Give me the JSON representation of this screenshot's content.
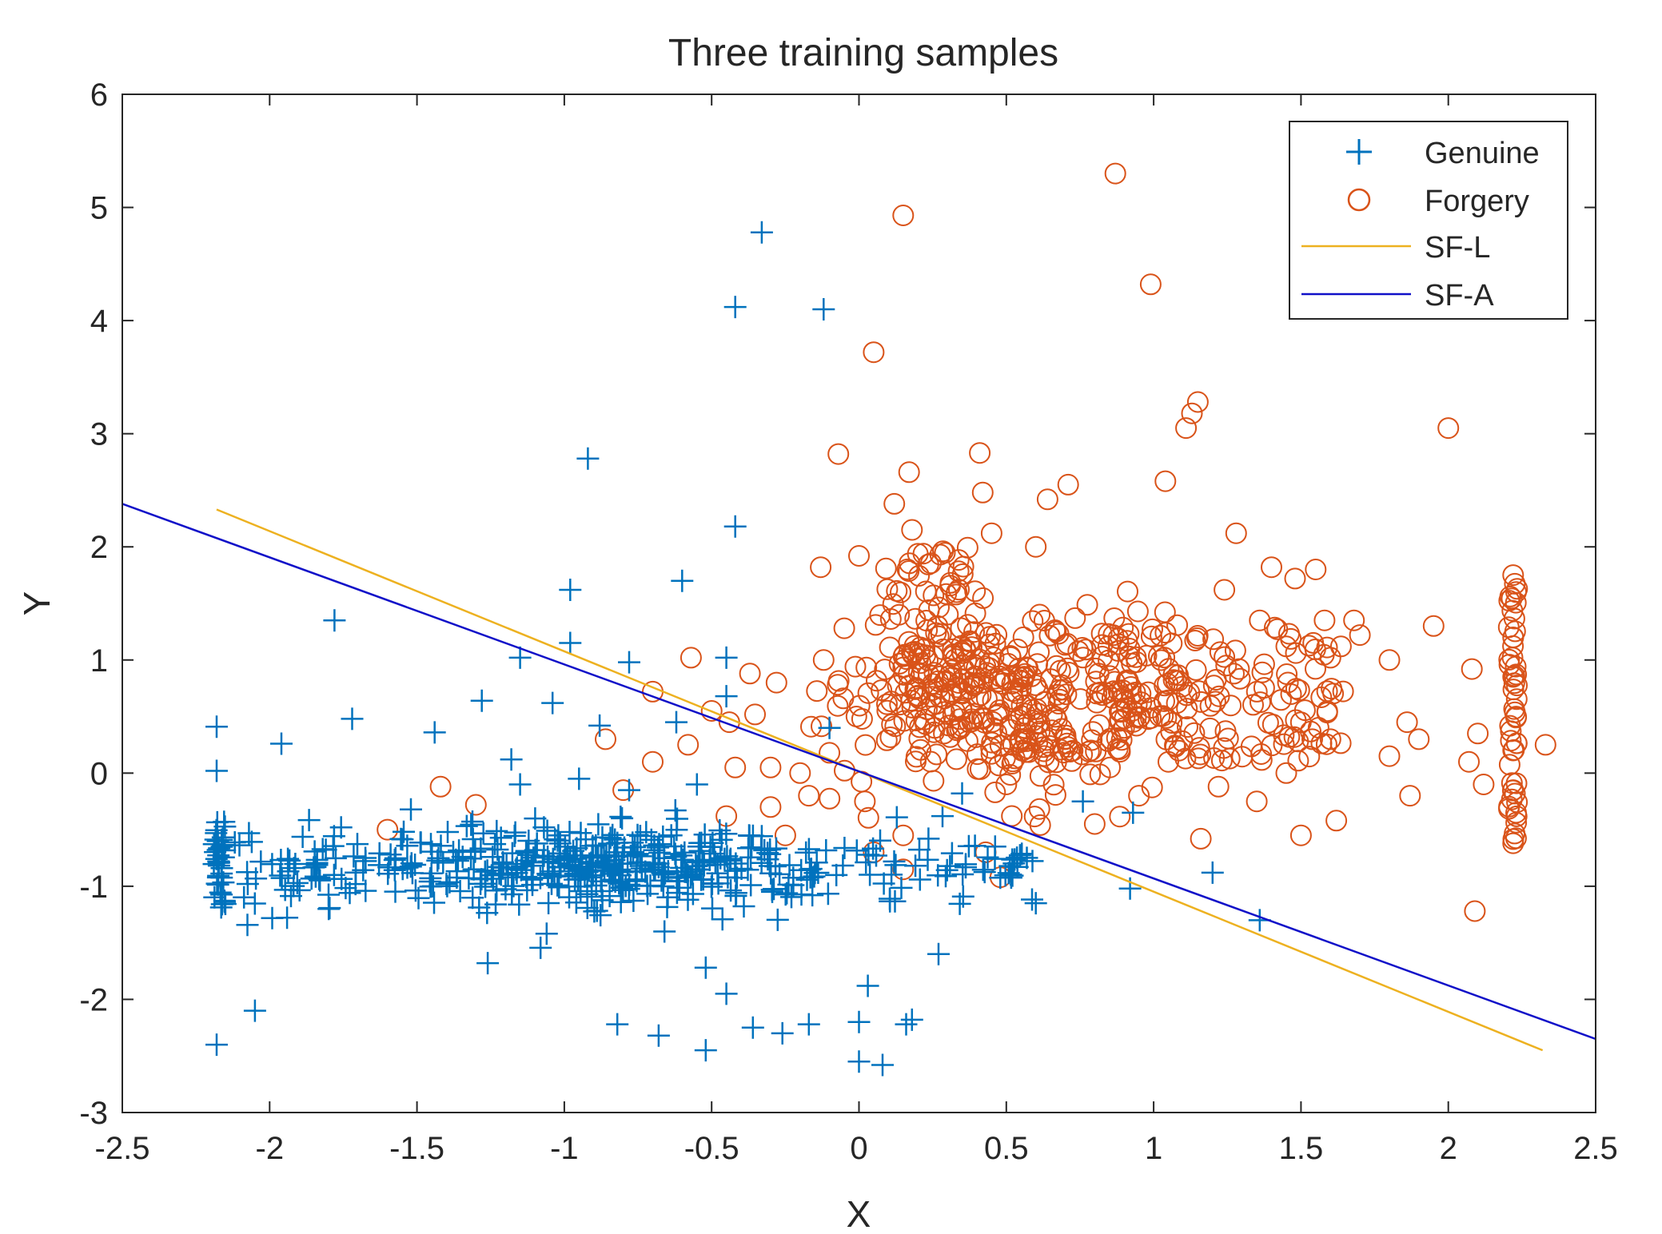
{
  "chart_data": {
    "type": "scatter",
    "title": "Three training samples",
    "xlabel": "X",
    "ylabel": "Y",
    "xlim": [
      -2.5,
      2.5
    ],
    "ylim": [
      -3,
      6
    ],
    "xticks": [
      -2.5,
      -2,
      -1.5,
      -1,
      -0.5,
      0,
      0.5,
      1,
      1.5,
      2,
      2.5
    ],
    "yticks": [
      -3,
      -2,
      -1,
      0,
      1,
      2,
      3,
      4,
      5,
      6
    ],
    "xtick_labels": [
      "-2.5",
      "-2",
      "-1.5",
      "-1",
      "-0.5",
      "0",
      "0.5",
      "1",
      "1.5",
      "2",
      "2.5"
    ],
    "ytick_labels": [
      "-3",
      "-2",
      "-1",
      "0",
      "1",
      "2",
      "3",
      "4",
      "5",
      "6"
    ],
    "grid": false,
    "legend_position": "top-right",
    "series": [
      {
        "name": "Genuine",
        "marker": "plus",
        "color": "#0072BD",
        "points": [
          [
            -0.33,
            4.78
          ],
          [
            -0.42,
            4.12
          ],
          [
            -0.12,
            4.1
          ],
          [
            -0.92,
            2.78
          ],
          [
            -0.42,
            2.18
          ],
          [
            -0.98,
            1.62
          ],
          [
            -0.6,
            1.7
          ],
          [
            -1.78,
            1.35
          ],
          [
            -0.98,
            1.15
          ],
          [
            -1.15,
            1.02
          ],
          [
            -0.78,
            0.98
          ],
          [
            -0.45,
            1.02
          ],
          [
            -1.72,
            0.48
          ],
          [
            -1.44,
            0.36
          ],
          [
            -1.28,
            0.64
          ],
          [
            -1.04,
            0.62
          ],
          [
            -2.18,
            0.41
          ],
          [
            -1.96,
            0.26
          ],
          [
            -2.18,
            0.02
          ],
          [
            -1.18,
            0.12
          ],
          [
            -0.88,
            0.42
          ],
          [
            -0.62,
            0.45
          ],
          [
            -0.45,
            0.68
          ],
          [
            -0.1,
            0.4
          ],
          [
            -2.05,
            -2.1
          ],
          [
            -2.18,
            -2.4
          ],
          [
            -1.26,
            -1.68
          ],
          [
            -0.82,
            -2.22
          ],
          [
            -0.68,
            -2.32
          ],
          [
            -0.52,
            -2.45
          ],
          [
            -0.52,
            -1.72
          ],
          [
            -0.45,
            -1.95
          ],
          [
            -0.36,
            -2.25
          ],
          [
            -0.26,
            -2.3
          ],
          [
            -0.17,
            -2.22
          ],
          [
            0.0,
            -2.55
          ],
          [
            0.08,
            -2.58
          ],
          [
            0.0,
            -2.2
          ],
          [
            0.16,
            -2.22
          ],
          [
            0.18,
            -2.18
          ],
          [
            0.03,
            -1.88
          ],
          [
            0.27,
            -1.6
          ],
          [
            -0.66,
            -1.4
          ],
          [
            -1.06,
            -1.42
          ],
          [
            1.2,
            -0.88
          ],
          [
            1.36,
            -1.3
          ],
          [
            0.92,
            -1.02
          ],
          [
            0.93,
            -0.35
          ],
          [
            0.6,
            -1.15
          ],
          [
            0.76,
            -0.25
          ],
          [
            0.35,
            -0.18
          ],
          [
            -0.78,
            -0.15
          ],
          [
            -0.55,
            -0.1
          ],
          [
            -1.15,
            -0.1
          ],
          [
            -0.95,
            -0.05
          ]
        ],
        "cluster_note": "dense band around x -2.2 to 0.6, y -1.3 to -0.3"
      },
      {
        "name": "Forgery",
        "marker": "circle",
        "color": "#D95319",
        "points": [
          [
            0.87,
            5.3
          ],
          [
            0.15,
            4.93
          ],
          [
            0.99,
            4.32
          ],
          [
            0.05,
            3.72
          ],
          [
            1.15,
            3.28
          ],
          [
            1.13,
            3.18
          ],
          [
            1.11,
            3.05
          ],
          [
            2.0,
            3.05
          ],
          [
            -0.07,
            2.82
          ],
          [
            0.41,
            2.83
          ],
          [
            0.17,
            2.66
          ],
          [
            1.04,
            2.58
          ],
          [
            0.71,
            2.55
          ],
          [
            0.42,
            2.48
          ],
          [
            0.12,
            2.38
          ],
          [
            0.64,
            2.42
          ],
          [
            1.28,
            2.12
          ],
          [
            0.18,
            2.15
          ],
          [
            0.45,
            2.12
          ],
          [
            0.6,
            2.0
          ],
          [
            -0.13,
            1.82
          ],
          [
            0.0,
            1.92
          ],
          [
            1.4,
            1.82
          ],
          [
            1.48,
            1.72
          ],
          [
            1.55,
            1.8
          ],
          [
            1.24,
            1.62
          ],
          [
            1.36,
            1.35
          ],
          [
            1.58,
            1.35
          ],
          [
            1.68,
            1.35
          ],
          [
            1.95,
            1.3
          ],
          [
            1.7,
            1.22
          ],
          [
            1.8,
            1.0
          ],
          [
            1.6,
            1.02
          ],
          [
            1.45,
            1.12
          ],
          [
            2.08,
            0.92
          ],
          [
            2.22,
            1.75
          ],
          [
            2.23,
            1.6
          ],
          [
            2.22,
            1.2
          ],
          [
            2.22,
            0.85
          ],
          [
            2.23,
            0.5
          ],
          [
            2.22,
            0.2
          ],
          [
            2.22,
            -0.15
          ],
          [
            2.23,
            -0.35
          ],
          [
            2.22,
            -0.62
          ],
          [
            2.33,
            0.25
          ],
          [
            2.1,
            0.35
          ],
          [
            2.07,
            0.1
          ],
          [
            2.12,
            -0.1
          ],
          [
            2.09,
            -1.22
          ],
          [
            1.86,
            0.45
          ],
          [
            1.9,
            0.3
          ],
          [
            1.8,
            0.15
          ],
          [
            1.87,
            -0.2
          ],
          [
            1.6,
            0.3
          ],
          [
            1.62,
            -0.42
          ],
          [
            1.5,
            -0.55
          ],
          [
            1.45,
            0.0
          ],
          [
            1.35,
            -0.25
          ],
          [
            1.22,
            -0.12
          ],
          [
            1.16,
            -0.58
          ],
          [
            -0.57,
            1.02
          ],
          [
            -0.37,
            0.88
          ],
          [
            -0.28,
            0.8
          ],
          [
            -0.12,
            1.0
          ],
          [
            -0.05,
            1.28
          ],
          [
            -0.7,
            0.72
          ],
          [
            -0.5,
            0.55
          ],
          [
            -0.44,
            0.45
          ],
          [
            -0.58,
            0.25
          ],
          [
            -0.7,
            0.1
          ],
          [
            -0.42,
            0.05
          ],
          [
            -0.3,
            0.05
          ],
          [
            -0.2,
            0.0
          ],
          [
            -0.1,
            0.18
          ],
          [
            -0.86,
            0.3
          ],
          [
            -1.42,
            -0.12
          ],
          [
            -1.3,
            -0.28
          ],
          [
            -1.6,
            -0.5
          ],
          [
            -0.8,
            -0.15
          ],
          [
            -0.45,
            -0.38
          ],
          [
            -0.3,
            -0.3
          ],
          [
            -0.25,
            -0.55
          ],
          [
            -0.17,
            -0.2
          ],
          [
            0.02,
            -0.25
          ],
          [
            0.15,
            -0.55
          ],
          [
            0.05,
            -0.7
          ],
          [
            0.15,
            -0.85
          ],
          [
            0.43,
            -0.7
          ],
          [
            0.48,
            -0.92
          ],
          [
            0.5,
            -0.1
          ],
          [
            0.7,
            0.3
          ],
          [
            0.8,
            -0.45
          ],
          [
            0.95,
            -0.2
          ],
          [
            1.05,
            0.1
          ],
          [
            0.9,
            0.4
          ]
        ],
        "cluster_note": "dense cluster around x 0.1 to 1.6, y -0.2 to 1.8"
      }
    ],
    "lines": [
      {
        "name": "SF-L",
        "color": "#EDB120",
        "x": [
          -2.18,
          2.32
        ],
        "y": [
          2.33,
          -2.45
        ]
      },
      {
        "name": "SF-A",
        "color": "#1010C8",
        "x": [
          -2.5,
          2.5
        ],
        "y": [
          2.38,
          -2.35
        ]
      }
    ],
    "legend": [
      "Genuine",
      "Forgery",
      "SF-L",
      "SF-A"
    ]
  }
}
